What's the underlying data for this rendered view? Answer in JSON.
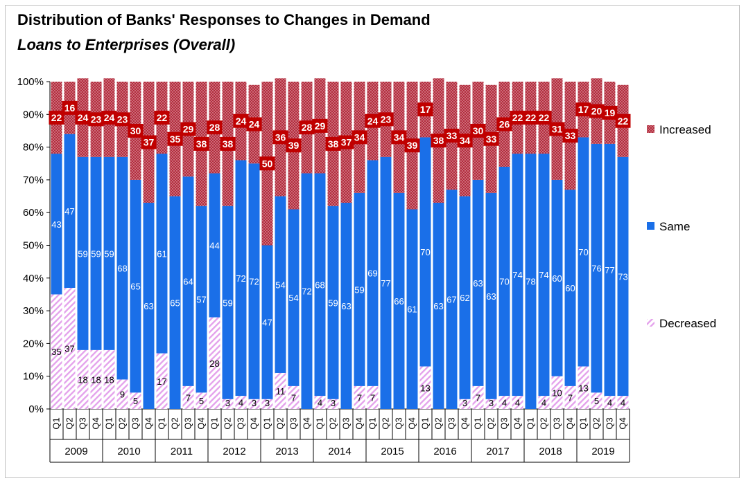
{
  "title": "Distribution of Banks' Responses to Changes in Demand",
  "subtitle": "Loans to Enterprises (Overall)",
  "chart_data": {
    "type": "bar",
    "stacked": true,
    "percent_stacked": true,
    "ylim": [
      0,
      100
    ],
    "yticks": [
      "0%",
      "10%",
      "20%",
      "30%",
      "40%",
      "50%",
      "60%",
      "70%",
      "80%",
      "90%",
      "100%"
    ],
    "quarters": [
      "Q1",
      "Q2",
      "Q3",
      "Q4",
      "Q1",
      "Q2",
      "Q3",
      "Q4",
      "Q1",
      "Q2",
      "Q3",
      "Q4",
      "Q1",
      "Q2",
      "Q3",
      "Q4",
      "Q1",
      "Q2",
      "Q3",
      "Q4",
      "Q1",
      "Q2",
      "Q3",
      "Q4",
      "Q1",
      "Q2",
      "Q3",
      "Q4",
      "Q1",
      "Q2",
      "Q3",
      "Q4",
      "Q1",
      "Q2",
      "Q3",
      "Q4",
      "Q1",
      "Q2",
      "Q3",
      "Q4",
      "Q1",
      "Q2",
      "Q3",
      "Q4"
    ],
    "years": [
      "2009",
      "2010",
      "2011",
      "2012",
      "2013",
      "2014",
      "2015",
      "2016",
      "2017",
      "2018",
      "2019"
    ],
    "series": [
      {
        "name": "Decreased",
        "color": "#e9b3f0",
        "values": [
          35,
          37,
          18,
          18,
          18,
          9,
          5,
          0,
          17,
          0,
          7,
          5,
          28,
          3,
          4,
          3,
          3,
          11,
          7,
          0,
          4,
          3,
          0,
          7,
          7,
          0,
          0,
          0,
          13,
          0,
          0,
          3,
          7,
          3,
          4,
          4,
          0,
          4,
          10,
          7,
          13,
          5,
          4,
          4
        ]
      },
      {
        "name": "Same",
        "color": "#1a6fe8",
        "values": [
          43,
          47,
          59,
          59,
          59,
          68,
          65,
          63,
          61,
          65,
          64,
          57,
          44,
          59,
          72,
          72,
          47,
          54,
          54,
          72,
          68,
          59,
          63,
          59,
          69,
          77,
          66,
          61,
          70,
          63,
          67,
          62,
          63,
          63,
          70,
          74,
          78,
          74,
          60,
          60,
          70,
          76,
          77,
          73
        ]
      },
      {
        "name": "Increased",
        "color": "#b22c3d",
        "values": [
          22,
          16,
          24,
          23,
          24,
          23,
          30,
          37,
          22,
          35,
          29,
          38,
          28,
          38,
          24,
          24,
          50,
          36,
          39,
          28,
          29,
          38,
          37,
          34,
          24,
          23,
          34,
          39,
          17,
          38,
          33,
          34,
          30,
          33,
          26,
          22,
          22,
          22,
          31,
          33,
          17,
          20,
          19,
          22
        ]
      }
    ],
    "legend_position": "right",
    "grid": false
  }
}
